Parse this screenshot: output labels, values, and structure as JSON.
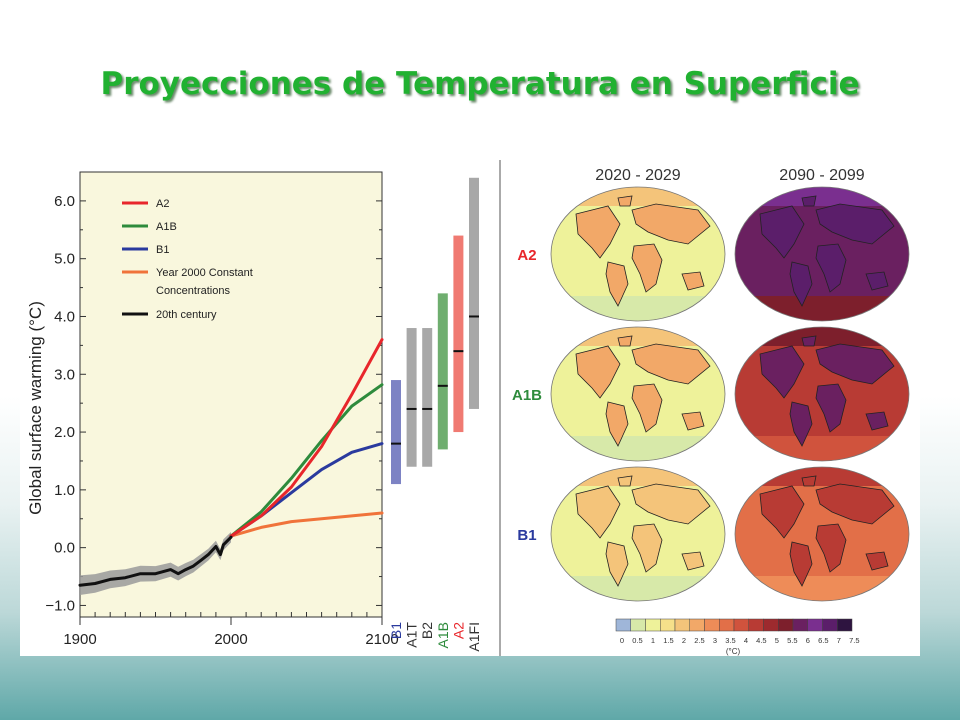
{
  "slide": {
    "title": "Proyecciones de Temperatura en Superficie"
  },
  "chart_data": [
    {
      "type": "line",
      "ylabel": "Global surface warming (°C)",
      "xlim": [
        1900,
        2100
      ],
      "ylim": [
        -1.2,
        6.5
      ],
      "x_ticks": [
        "1900",
        "2000",
        "2100"
      ],
      "y_ticks": [
        "6.0",
        "5.0",
        "4.0",
        "3.0",
        "2.0",
        "1.0",
        "0.0",
        "−1.0"
      ],
      "y_tick_values": [
        6,
        5,
        4,
        3,
        2,
        1,
        0,
        -1
      ],
      "legend": [
        {
          "label": "A2",
          "color": "#e8262b"
        },
        {
          "label": "A1B",
          "color": "#2e8b3c"
        },
        {
          "label": "B1",
          "color": "#2a3a9e"
        },
        {
          "label": "Year 2000 Constant",
          "label2": "Concentrations",
          "color": "#f0733a"
        },
        {
          "label": "20th century",
          "color": "#111111"
        }
      ],
      "series": [
        {
          "name": "20th century",
          "color": "#111111",
          "band_color": "#9a9a9a",
          "x": [
            1900,
            1910,
            1920,
            1930,
            1940,
            1950,
            1960,
            1965,
            1970,
            1975,
            1980,
            1985,
            1990,
            1993,
            1995,
            2000
          ],
          "y": [
            -0.65,
            -0.62,
            -0.55,
            -0.52,
            -0.45,
            -0.45,
            -0.38,
            -0.45,
            -0.38,
            -0.32,
            -0.22,
            -0.12,
            0.02,
            -0.12,
            0.05,
            0.18
          ]
        },
        {
          "name": "A2",
          "color": "#e8262b",
          "x": [
            2000,
            2020,
            2040,
            2060,
            2080,
            2100
          ],
          "y": [
            0.2,
            0.55,
            1.05,
            1.75,
            2.65,
            3.6
          ]
        },
        {
          "name": "A1B",
          "color": "#2e8b3c",
          "x": [
            2000,
            2020,
            2040,
            2060,
            2080,
            2100
          ],
          "y": [
            0.2,
            0.62,
            1.2,
            1.85,
            2.45,
            2.82
          ]
        },
        {
          "name": "B1",
          "color": "#2a3a9e",
          "x": [
            2000,
            2020,
            2040,
            2060,
            2080,
            2100
          ],
          "y": [
            0.2,
            0.55,
            0.95,
            1.35,
            1.65,
            1.8
          ]
        },
        {
          "name": "Year 2000 Constant Concentrations",
          "color": "#f0733a",
          "x": [
            2000,
            2020,
            2040,
            2060,
            2080,
            2100
          ],
          "y": [
            0.2,
            0.35,
            0.45,
            0.5,
            0.55,
            0.6
          ]
        }
      ],
      "scenario_ranges": [
        {
          "label": "B1",
          "low": 1.1,
          "high": 2.9,
          "best": 1.8,
          "bar_color": "#7d83c4",
          "label_color": "#2a3a9e"
        },
        {
          "label": "A1T",
          "low": 1.4,
          "high": 3.8,
          "best": 2.4,
          "bar_color": "#a8a8a8",
          "label_color": "#333333"
        },
        {
          "label": "B2",
          "low": 1.4,
          "high": 3.8,
          "best": 2.4,
          "bar_color": "#a8a8a8",
          "label_color": "#333333"
        },
        {
          "label": "A1B",
          "low": 1.7,
          "high": 4.4,
          "best": 2.8,
          "bar_color": "#6fae6f",
          "label_color": "#2e8b3c"
        },
        {
          "label": "A2",
          "low": 2.0,
          "high": 5.4,
          "best": 3.4,
          "bar_color": "#f07a72",
          "label_color": "#e8262b"
        },
        {
          "label": "A1FI",
          "low": 2.4,
          "high": 6.4,
          "best": 4.0,
          "bar_color": "#a8a8a8",
          "label_color": "#333333"
        }
      ]
    },
    {
      "type": "heatmap",
      "columns": [
        "2020 - 2029",
        "2090 - 2099"
      ],
      "rows": [
        "A2",
        "A1B",
        "B1"
      ],
      "row_label_colors": [
        "#e8262b",
        "#2e8b3c",
        "#2a3a9e"
      ],
      "color_scale": {
        "ticks": [
          "0",
          "0.5",
          "1",
          "1.5",
          "2",
          "2.5",
          "3",
          "3.5",
          "4",
          "4.5",
          "5",
          "5.5",
          "6",
          "6.5",
          "7",
          "7.5"
        ],
        "unit": "(°C)",
        "colors": [
          "#9fb6d9",
          "#d7e9a9",
          "#eef29a",
          "#f6e08a",
          "#f4c47a",
          "#f2a868",
          "#ee8c58",
          "#e26f48",
          "#d0533d",
          "#b83b34",
          "#9d2a2e",
          "#7d1f2c",
          "#6a2060",
          "#7a2f8f",
          "#5b1e6a",
          "#2e1440"
        ]
      },
      "intensity_levels": [
        [
          1.4,
          6.1
        ],
        [
          1.5,
          5.0
        ],
        [
          1.3,
          3.8
        ]
      ]
    }
  ]
}
